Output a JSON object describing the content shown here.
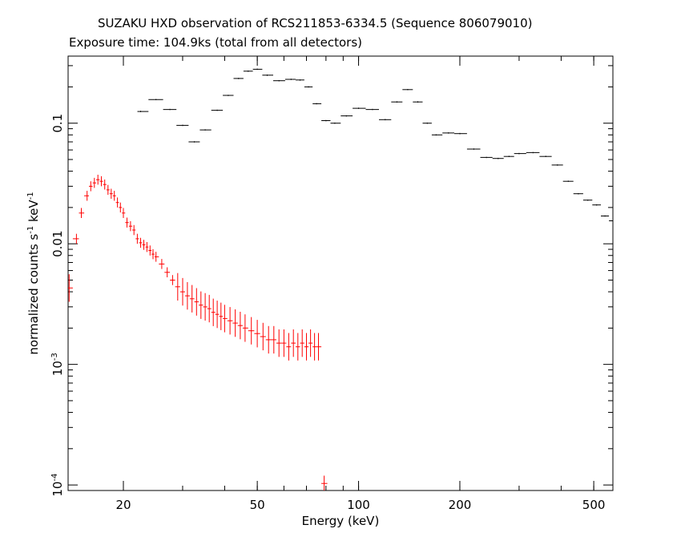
{
  "title": "SUZAKU HXD observation of RCS211853-6334.5 (Sequence 806079010)",
  "subtitle": "Exposure time: 104.9ks (total from all detectors)",
  "chart_data": {
    "type": "scatter",
    "xlabel": "Energy (keV)",
    "ylabel_parts": [
      "normalized counts s",
      "-1",
      " keV",
      "-1"
    ],
    "xscale": "log",
    "yscale": "log",
    "xlim": [
      13.7,
      570
    ],
    "ylim": [
      9e-05,
      0.36
    ],
    "x_ticks": [
      {
        "value": 20,
        "label": "20"
      },
      {
        "value": 50,
        "label": "50"
      },
      {
        "value": 100,
        "label": "100"
      },
      {
        "value": 200,
        "label": "200"
      },
      {
        "value": 500,
        "label": "500"
      }
    ],
    "y_ticks": [
      {
        "value": 0.1,
        "label": "0.1"
      },
      {
        "value": 0.01,
        "label": "0.01"
      },
      {
        "value": 0.001,
        "base": "10",
        "exp": "-3"
      },
      {
        "value": 0.0001,
        "base": "10",
        "exp": "-4"
      }
    ],
    "series": [
      {
        "color": "#000000",
        "points": [
          [
            22.5,
            0.125
          ],
          [
            25.0,
            0.157
          ],
          [
            27.5,
            0.13
          ],
          [
            30.0,
            0.096
          ],
          [
            32.5,
            0.07
          ],
          [
            35.0,
            0.088
          ],
          [
            38.0,
            0.128
          ],
          [
            41.0,
            0.17
          ],
          [
            44.0,
            0.235
          ],
          [
            47.0,
            0.27
          ],
          [
            50.0,
            0.28
          ],
          [
            53.5,
            0.25
          ],
          [
            58.0,
            0.225
          ],
          [
            63.0,
            0.231
          ],
          [
            67.0,
            0.228
          ],
          [
            71.0,
            0.2
          ],
          [
            75.0,
            0.145
          ],
          [
            80.0,
            0.105
          ],
          [
            85.0,
            0.1
          ],
          [
            92.0,
            0.115
          ],
          [
            100.0,
            0.133
          ],
          [
            110.0,
            0.13
          ],
          [
            120.0,
            0.107
          ],
          [
            130.0,
            0.15
          ],
          [
            140.0,
            0.19
          ],
          [
            150.0,
            0.15
          ],
          [
            160.0,
            0.1
          ],
          [
            170.0,
            0.08
          ],
          [
            185.0,
            0.083
          ],
          [
            200.0,
            0.082
          ],
          [
            220.0,
            0.061
          ],
          [
            240.0,
            0.052
          ],
          [
            260.0,
            0.051
          ],
          [
            280.0,
            0.053
          ],
          [
            300.0,
            0.056
          ],
          [
            330.0,
            0.057
          ],
          [
            360.0,
            0.053
          ],
          [
            390.0,
            0.045
          ],
          [
            420.0,
            0.033
          ],
          [
            450.0,
            0.026
          ],
          [
            480.0,
            0.023
          ],
          [
            510.0,
            0.021
          ],
          [
            540.0,
            0.017
          ],
          [
            570.0,
            0.0155
          ]
        ]
      },
      {
        "color": "#ff0000",
        "points": [
          [
            13.8,
            0.0043
          ],
          [
            14.5,
            0.011
          ],
          [
            15.0,
            0.018
          ],
          [
            15.6,
            0.025
          ],
          [
            16.0,
            0.03
          ],
          [
            16.4,
            0.032
          ],
          [
            16.8,
            0.034
          ],
          [
            17.2,
            0.033
          ],
          [
            17.6,
            0.031
          ],
          [
            18.0,
            0.028
          ],
          [
            18.4,
            0.026
          ],
          [
            18.8,
            0.025
          ],
          [
            19.2,
            0.022
          ],
          [
            19.6,
            0.02
          ],
          [
            20.0,
            0.018
          ],
          [
            20.5,
            0.015
          ],
          [
            21.0,
            0.014
          ],
          [
            21.5,
            0.013
          ],
          [
            22.0,
            0.011
          ],
          [
            22.5,
            0.0102
          ],
          [
            23.0,
            0.0098
          ],
          [
            23.5,
            0.0094
          ],
          [
            24.0,
            0.0088
          ],
          [
            24.5,
            0.0082
          ],
          [
            25.0,
            0.0078
          ],
          [
            26.0,
            0.0068
          ],
          [
            27.0,
            0.0058
          ],
          [
            28.0,
            0.005
          ],
          [
            29.0,
            0.0044
          ],
          [
            30.0,
            0.004
          ],
          [
            31.0,
            0.0037
          ],
          [
            32.0,
            0.0035
          ],
          [
            33.0,
            0.0033
          ],
          [
            34.0,
            0.0031
          ],
          [
            35.0,
            0.003
          ],
          [
            36.0,
            0.0029
          ],
          [
            37.0,
            0.0027
          ],
          [
            38.0,
            0.0026
          ],
          [
            39.0,
            0.0025
          ],
          [
            40.0,
            0.0024
          ],
          [
            41.5,
            0.0023
          ],
          [
            43.0,
            0.0022
          ],
          [
            44.5,
            0.0021
          ],
          [
            46.0,
            0.002
          ],
          [
            48.0,
            0.0019
          ],
          [
            50.0,
            0.0018
          ],
          [
            52.0,
            0.0017
          ],
          [
            54.0,
            0.0016
          ],
          [
            56.0,
            0.0016
          ],
          [
            58.0,
            0.0015
          ],
          [
            60.0,
            0.0015
          ],
          [
            62.0,
            0.0014
          ],
          [
            64.0,
            0.0015
          ],
          [
            66.0,
            0.0014
          ],
          [
            68.0,
            0.0015
          ],
          [
            70.0,
            0.0014
          ],
          [
            72.0,
            0.0015
          ],
          [
            74.0,
            0.0014
          ],
          [
            76.0,
            0.0014
          ],
          [
            79.0,
            0.000103
          ]
        ]
      }
    ]
  }
}
